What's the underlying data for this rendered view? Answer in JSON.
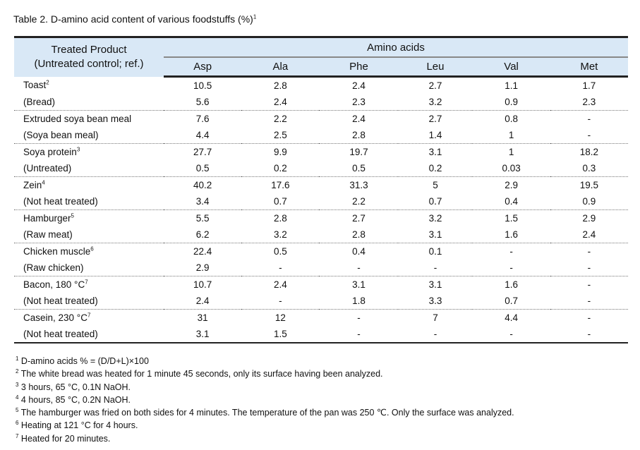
{
  "title": {
    "text": "Table 2. D-amino acid content of various foodstuffs (%)",
    "sup": "1"
  },
  "header": {
    "row_header_line1": "Treated Product",
    "row_header_line2": "(Untreated control; ref.)",
    "group": "Amino acids",
    "columns": [
      "Asp",
      "Ala",
      "Phe",
      "Leu",
      "Val",
      "Met"
    ]
  },
  "rows": [
    {
      "label": "Toast",
      "sup": "2",
      "values": [
        "10.5",
        "2.8",
        "2.4",
        "2.7",
        "1.1",
        "1.7"
      ]
    },
    {
      "label": "(Bread)",
      "sup": "",
      "values": [
        "5.6",
        "2.4",
        "2.3",
        "3.2",
        "0.9",
        "2.3"
      ]
    },
    {
      "label": "Extruded soya bean meal",
      "sup": "",
      "values": [
        "7.6",
        "2.2",
        "2.4",
        "2.7",
        "0.8",
        "-"
      ]
    },
    {
      "label": "(Soya bean meal)",
      "sup": "",
      "values": [
        "4.4",
        "2.5",
        "2.8",
        "1.4",
        "1",
        "-"
      ]
    },
    {
      "label": "Soya protein",
      "sup": "3",
      "values": [
        "27.7",
        "9.9",
        "19.7",
        "3.1",
        "1",
        "18.2"
      ]
    },
    {
      "label": "(Untreated)",
      "sup": "",
      "values": [
        "0.5",
        "0.2",
        "0.5",
        "0.2",
        "0.03",
        "0.3"
      ]
    },
    {
      "label": "Zein",
      "sup": "4",
      "values": [
        "40.2",
        "17.6",
        "31.3",
        "5",
        "2.9",
        "19.5"
      ]
    },
    {
      "label": "(Not heat treated)",
      "sup": "",
      "values": [
        "3.4",
        "0.7",
        "2.2",
        "0.7",
        "0.4",
        "0.9"
      ]
    },
    {
      "label": "Hamburger",
      "sup": "5",
      "values": [
        "5.5",
        "2.8",
        "2.7",
        "3.2",
        "1.5",
        "2.9"
      ]
    },
    {
      "label": "(Raw meat)",
      "sup": "",
      "values": [
        "6.2",
        "3.2",
        "2.8",
        "3.1",
        "1.6",
        "2.4"
      ]
    },
    {
      "label": "Chicken muscle",
      "sup": "6",
      "values": [
        "22.4",
        "0.5",
        "0.4",
        "0.1",
        "-",
        "-"
      ]
    },
    {
      "label": "(Raw chicken)",
      "sup": "",
      "values": [
        "2.9",
        "-",
        "-",
        "-",
        "-",
        "-"
      ]
    },
    {
      "label": "Bacon, 180 °C",
      "sup": "7",
      "values": [
        "10.7",
        "2.4",
        "3.1",
        "3.1",
        "1.6",
        "-"
      ]
    },
    {
      "label": "(Not heat treated)",
      "sup": "",
      "values": [
        "2.4",
        "-",
        "1.8",
        "3.3",
        "0.7",
        "-"
      ]
    },
    {
      "label": "Casein, 230 °C",
      "sup": "7",
      "values": [
        "31",
        "12",
        "-",
        "7",
        "4.4",
        "-"
      ]
    },
    {
      "label": "(Not heat treated)",
      "sup": "",
      "values": [
        "3.1",
        "1.5",
        "-",
        "-",
        "-",
        "-"
      ]
    }
  ],
  "footnotes": [
    {
      "sup": "1",
      "text": " D-amino acids % = (D/D+L)×100"
    },
    {
      "sup": "2",
      "text": " The white bread was heated for 1 minute 45 seconds, only its surface having been analyzed."
    },
    {
      "sup": "3",
      "text": " 3 hours, 65 °C, 0.1N NaOH."
    },
    {
      "sup": "4",
      "text": " 4 hours, 85 °C, 0.2N NaOH."
    },
    {
      "sup": "5",
      "text": " The hamburger was fried on both sides for 4 minutes. The temperature of the pan was 250 ℃. Only the surface was analyzed."
    },
    {
      "sup": "6",
      "text": " Heating at 121 °C for 4 hours."
    },
    {
      "sup": "7",
      "text": " Heated for 20 minutes."
    }
  ],
  "colors": {
    "header_bg": "#d9e8f6"
  }
}
